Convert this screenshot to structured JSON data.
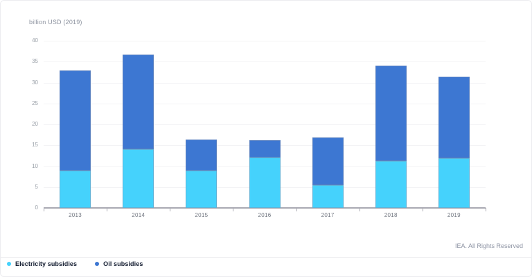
{
  "page": {
    "footer": "IEA. All Rights Reserved"
  },
  "chart_data": {
    "type": "bar",
    "stacked": true,
    "title": "billion USD (2019)",
    "categories": [
      "2013",
      "2014",
      "2015",
      "2016",
      "2017",
      "2018",
      "2019"
    ],
    "series": [
      {
        "name": "Electricity subsidies",
        "color": "#45d2fc",
        "values": [
          9.0,
          14.0,
          8.9,
          12.0,
          5.5,
          11.2,
          11.9
        ]
      },
      {
        "name": "Oil subsidies",
        "color": "#3d77d2",
        "values": [
          23.9,
          22.7,
          7.4,
          4.2,
          11.3,
          22.9,
          19.5
        ]
      }
    ],
    "totals": [
      32.9,
      36.7,
      16.3,
      16.2,
      16.8,
      34.1,
      31.4
    ],
    "ylim": [
      0,
      40
    ],
    "ytick_step": 5,
    "grid": "horizontal",
    "legend_position": "bottom-left",
    "axis_color": "#a9a9b2"
  }
}
